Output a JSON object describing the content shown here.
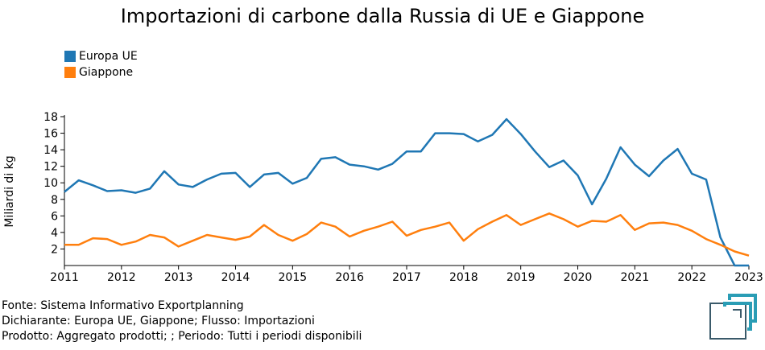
{
  "chart_data": {
    "type": "line",
    "title": "Importazioni di carbone dalla Russia di UE e Giappone",
    "xlabel": "",
    "ylabel": "Miliardi di kg",
    "xlim": [
      2011,
      2023
    ],
    "ylim": [
      0,
      18
    ],
    "x_ticks": [
      "2011",
      "2012",
      "2013",
      "2014",
      "2015",
      "2016",
      "2017",
      "2018",
      "2019",
      "2020",
      "2021",
      "2022",
      "2023"
    ],
    "y_ticks": [
      2,
      4,
      6,
      8,
      10,
      12,
      14,
      16,
      18
    ],
    "legend_position": "top-left",
    "grid": false,
    "x": [
      2011.0,
      2011.25,
      2011.5,
      2011.75,
      2012.0,
      2012.25,
      2012.5,
      2012.75,
      2013.0,
      2013.25,
      2013.5,
      2013.75,
      2014.0,
      2014.25,
      2014.5,
      2014.75,
      2015.0,
      2015.25,
      2015.5,
      2015.75,
      2016.0,
      2016.25,
      2016.5,
      2016.75,
      2017.0,
      2017.25,
      2017.5,
      2017.75,
      2018.0,
      2018.25,
      2018.5,
      2018.75,
      2019.0,
      2019.25,
      2019.5,
      2019.75,
      2020.0,
      2020.25,
      2020.5,
      2020.75,
      2021.0,
      2021.25,
      2021.5,
      2021.75,
      2022.0,
      2022.25,
      2022.5,
      2022.75,
      2023.0
    ],
    "series": [
      {
        "name": "Europa UE",
        "color": "#1f77b4",
        "values": [
          8.9,
          10.3,
          9.7,
          9.0,
          9.1,
          8.8,
          9.3,
          11.4,
          9.8,
          9.5,
          10.4,
          11.1,
          11.2,
          9.5,
          11.0,
          11.2,
          9.9,
          10.6,
          12.9,
          13.1,
          12.2,
          12.0,
          11.6,
          12.3,
          13.8,
          13.8,
          16.0,
          16.0,
          15.9,
          15.0,
          15.8,
          17.7,
          15.9,
          13.8,
          11.9,
          12.7,
          10.9,
          7.4,
          10.5,
          14.3,
          12.2,
          10.8,
          12.7,
          14.1,
          11.1,
          10.4,
          3.4,
          0.0,
          0.0
        ]
      },
      {
        "name": "Giappone",
        "color": "#ff7f0e",
        "values": [
          2.5,
          2.5,
          3.3,
          3.2,
          2.5,
          2.9,
          3.7,
          3.4,
          2.3,
          3.0,
          3.7,
          3.4,
          3.1,
          3.5,
          4.9,
          3.7,
          3.0,
          3.8,
          5.2,
          4.7,
          3.5,
          4.2,
          4.7,
          5.3,
          3.6,
          4.3,
          4.7,
          5.2,
          3.0,
          4.4,
          5.3,
          6.1,
          4.9,
          5.6,
          6.3,
          5.6,
          4.7,
          5.4,
          5.3,
          6.1,
          4.3,
          5.1,
          5.2,
          4.9,
          4.2,
          3.2,
          2.5,
          1.7,
          1.2
        ]
      }
    ]
  },
  "footer": {
    "line1": "Fonte: Sistema Informativo Exportplanning",
    "line2": "Dichiarante: Europa UE, Giappone; Flusso: Importazioni",
    "line3": "Prodotto: Aggregato prodotti; ; Periodo: Tutti i periodi disponibili"
  },
  "logo": {
    "color_primary": "#2a9db5",
    "color_secondary": "#3a5a6a"
  }
}
